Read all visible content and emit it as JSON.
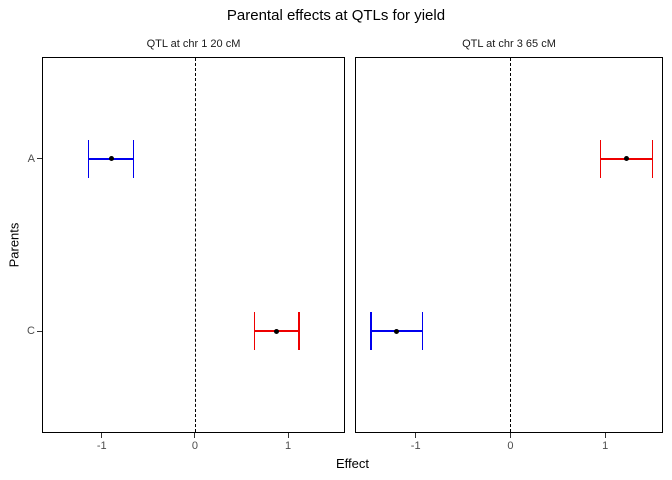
{
  "chart_data": {
    "type": "errorbar",
    "title": "Parental effects at QTLs for yield",
    "xlabel": "Effect",
    "ylabel": "Parents",
    "categories": [
      "A",
      "C"
    ],
    "x_ticks": [
      "-1",
      "0",
      "1"
    ],
    "x_tick_values": [
      -1,
      0,
      1
    ],
    "xlim": [
      -1.63,
      1.6
    ],
    "reference_line_x": 0,
    "grid": false,
    "legend": "none",
    "colors": {
      "blue": "#0000EE",
      "red": "#EE0000",
      "point": "#000000",
      "tick_label": "#4d4d4d",
      "panel_border": "#000000"
    },
    "panels": [
      {
        "label": "QTL at chr 1 20 cM",
        "points": [
          {
            "parent": "A",
            "effect": -0.9,
            "ci_low": -1.14,
            "ci_high": -0.66,
            "color": "#0000EE"
          },
          {
            "parent": "C",
            "effect": 0.88,
            "ci_low": 0.64,
            "ci_high": 1.12,
            "color": "#EE0000"
          }
        ]
      },
      {
        "label": "QTL at chr 3 65 cM",
        "points": [
          {
            "parent": "A",
            "effect": 1.22,
            "ci_low": 0.95,
            "ci_high": 1.5,
            "color": "#EE0000"
          },
          {
            "parent": "C",
            "effect": -1.2,
            "ci_low": -1.47,
            "ci_high": -0.93,
            "color": "#0000EE"
          }
        ]
      }
    ]
  }
}
